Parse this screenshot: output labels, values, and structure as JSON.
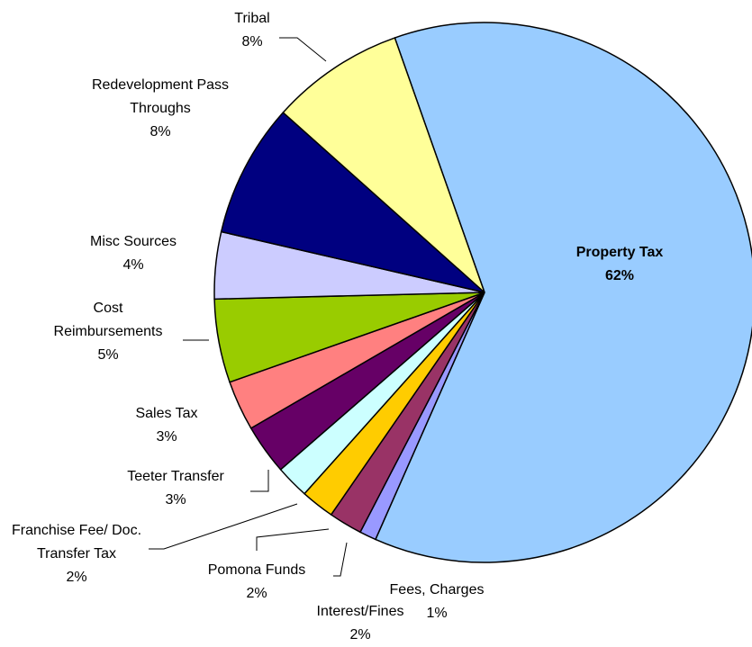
{
  "chart_data": {
    "type": "pie",
    "categories": [
      "Property Tax",
      "Fees, Charges",
      "Interest/Fines",
      "Pomona Funds",
      "Franchise Fee/ Doc. Transfer Tax",
      "Teeter Transfer",
      "Sales Tax",
      "Cost Reimbursements",
      "Misc Sources",
      "Redevelopment Pass Throughs",
      "Tribal"
    ],
    "values": [
      62,
      1,
      2,
      2,
      2,
      3,
      3,
      5,
      4,
      8,
      8
    ],
    "value_labels": [
      "62%",
      "1%",
      "2%",
      "2%",
      "2%",
      "3%",
      "3%",
      "5%",
      "4%",
      "8%",
      "8%"
    ],
    "colors": [
      "#99ccff",
      "#9999ff",
      "#993366",
      "#ffcc00",
      "#ccffff",
      "#660066",
      "#ff8080",
      "#99cc00",
      "#ccccff",
      "#000080",
      "#ffff99"
    ]
  }
}
